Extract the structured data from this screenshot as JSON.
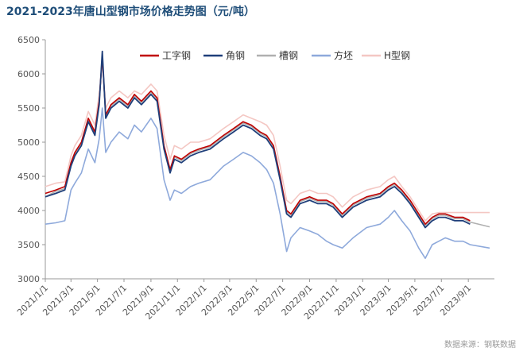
{
  "title": "2021-2023年唐山型钢市场价格走势图（元/吨）",
  "source": "数据来源：钢联数据",
  "chart_data": {
    "type": "line",
    "title": "2021-2023年唐山型钢市场价格走势图（元/吨）",
    "xlabel": "",
    "ylabel": "",
    "ylim": [
      3000,
      6500
    ],
    "yticks": [
      3000,
      3500,
      4000,
      4500,
      5000,
      5500,
      6000,
      6500
    ],
    "xlim": [
      "2021-01-01",
      "2023-10-31"
    ],
    "xticks": [
      "2021/1/1",
      "2021/3/1",
      "2021/5/1",
      "2021/7/1",
      "2021/9/1",
      "2021/11/1",
      "2022/1/1",
      "2022/3/1",
      "2022/5/1",
      "2022/7/1",
      "2022/9/1",
      "2022/11/1",
      "2023/1/1",
      "2023/3/1",
      "2023/5/1",
      "2023/7/1",
      "2023/9/1"
    ],
    "grid": false,
    "legend_position": "top-right",
    "series": [
      {
        "name": "工字钢",
        "color": "#c00000",
        "x": [
          "2021-01-01",
          "2021-01-25",
          "2021-02-15",
          "2021-03-01",
          "2021-03-10",
          "2021-03-25",
          "2021-04-10",
          "2021-04-25",
          "2021-05-05",
          "2021-05-12",
          "2021-05-20",
          "2021-06-01",
          "2021-06-20",
          "2021-07-10",
          "2021-07-25",
          "2021-08-10",
          "2021-09-01",
          "2021-09-15",
          "2021-10-01",
          "2021-10-15",
          "2021-10-25",
          "2021-11-10",
          "2021-12-01",
          "2021-12-20",
          "2022-01-15",
          "2022-02-15",
          "2022-03-10",
          "2022-04-01",
          "2022-04-20",
          "2022-05-10",
          "2022-05-25",
          "2022-06-10",
          "2022-06-25",
          "2022-07-10",
          "2022-07-20",
          "2022-08-10",
          "2022-09-01",
          "2022-09-20",
          "2022-10-10",
          "2022-10-25",
          "2022-11-15",
          "2022-12-10",
          "2023-01-10",
          "2023-02-10",
          "2023-03-01",
          "2023-03-15",
          "2023-04-01",
          "2023-04-20",
          "2023-05-10",
          "2023-05-25",
          "2023-06-10",
          "2023-06-25",
          "2023-07-10",
          "2023-08-01",
          "2023-08-20",
          "2023-09-05"
        ],
        "values": [
          4250,
          4300,
          4350,
          4700,
          4850,
          5000,
          5350,
          5150,
          5600,
          6250,
          5400,
          5550,
          5650,
          5550,
          5700,
          5600,
          5750,
          5650,
          4950,
          4600,
          4800,
          4750,
          4850,
          4900,
          4950,
          5100,
          5200,
          5300,
          5250,
          5150,
          5100,
          4950,
          4500,
          4000,
          3950,
          4150,
          4200,
          4150,
          4150,
          4100,
          3950,
          4100,
          4200,
          4250,
          4350,
          4400,
          4300,
          4150,
          3950,
          3800,
          3900,
          3950,
          3950,
          3900,
          3900,
          3850
        ]
      },
      {
        "name": "角钢",
        "color": "#1f3f7a",
        "x": [
          "2021-01-01",
          "2021-01-25",
          "2021-02-15",
          "2021-03-01",
          "2021-03-10",
          "2021-03-25",
          "2021-04-10",
          "2021-04-25",
          "2021-05-05",
          "2021-05-12",
          "2021-05-20",
          "2021-06-01",
          "2021-06-20",
          "2021-07-10",
          "2021-07-25",
          "2021-08-10",
          "2021-09-01",
          "2021-09-15",
          "2021-10-01",
          "2021-10-15",
          "2021-10-25",
          "2021-11-10",
          "2021-12-01",
          "2021-12-20",
          "2022-01-15",
          "2022-02-15",
          "2022-03-10",
          "2022-04-01",
          "2022-04-20",
          "2022-05-10",
          "2022-05-25",
          "2022-06-10",
          "2022-06-25",
          "2022-07-10",
          "2022-07-20",
          "2022-08-10",
          "2022-09-01",
          "2022-09-20",
          "2022-10-10",
          "2022-10-25",
          "2022-11-15",
          "2022-12-10",
          "2023-01-10",
          "2023-02-10",
          "2023-03-01",
          "2023-03-15",
          "2023-04-01",
          "2023-04-20",
          "2023-05-10",
          "2023-05-25",
          "2023-06-10",
          "2023-06-25",
          "2023-07-10",
          "2023-08-01",
          "2023-08-20",
          "2023-09-05"
        ],
        "values": [
          4200,
          4250,
          4300,
          4650,
          4800,
          4950,
          5300,
          5100,
          5550,
          6330,
          5350,
          5500,
          5600,
          5500,
          5650,
          5550,
          5700,
          5600,
          4900,
          4550,
          4750,
          4700,
          4800,
          4850,
          4900,
          5050,
          5150,
          5250,
          5200,
          5100,
          5050,
          4900,
          4450,
          3950,
          3900,
          4100,
          4150,
          4100,
          4100,
          4050,
          3900,
          4050,
          4150,
          4200,
          4300,
          4350,
          4250,
          4100,
          3900,
          3750,
          3850,
          3900,
          3900,
          3850,
          3850,
          3800
        ]
      },
      {
        "name": "槽钢",
        "color": "#b0b0b0",
        "x": [
          "2021-01-01",
          "2021-01-25",
          "2021-02-15",
          "2021-03-01",
          "2021-03-10",
          "2021-03-25",
          "2021-04-10",
          "2021-04-25",
          "2021-05-05",
          "2021-05-12",
          "2021-05-20",
          "2021-06-01",
          "2021-06-20",
          "2021-07-10",
          "2021-07-25",
          "2021-08-10",
          "2021-09-01",
          "2021-09-15",
          "2021-10-01",
          "2021-10-15",
          "2021-10-25",
          "2021-11-10",
          "2021-12-01",
          "2021-12-20",
          "2022-01-15",
          "2022-02-15",
          "2022-03-10",
          "2022-04-01",
          "2022-04-20",
          "2022-05-10",
          "2022-05-25",
          "2022-06-10",
          "2022-06-25",
          "2022-07-10",
          "2022-07-20",
          "2022-08-10",
          "2022-09-01",
          "2022-09-20",
          "2022-10-10",
          "2022-10-25",
          "2022-11-15",
          "2022-12-10",
          "2023-01-10",
          "2023-02-10",
          "2023-03-01",
          "2023-03-15",
          "2023-04-01",
          "2023-04-20",
          "2023-05-10",
          "2023-05-25",
          "2023-06-10",
          "2023-06-25",
          "2023-07-10",
          "2023-08-01",
          "2023-08-20",
          "2023-09-05",
          "2023-10-20"
        ],
        "values": [
          4200,
          4280,
          4320,
          4680,
          4830,
          4980,
          5330,
          5130,
          5580,
          6280,
          5380,
          5530,
          5630,
          5530,
          5680,
          5580,
          5730,
          5630,
          4930,
          4580,
          4780,
          4730,
          4830,
          4880,
          4930,
          5080,
          5180,
          5280,
          5230,
          5130,
          5080,
          4930,
          4480,
          3980,
          3930,
          4130,
          4180,
          4130,
          4130,
          4080,
          3930,
          4080,
          4180,
          4230,
          4330,
          4380,
          4280,
          4130,
          3930,
          3780,
          3880,
          3930,
          3930,
          3880,
          3880,
          3830,
          3760
        ]
      },
      {
        "name": "方坯",
        "color": "#8ea9db",
        "x": [
          "2021-01-01",
          "2021-01-25",
          "2021-02-15",
          "2021-03-01",
          "2021-03-10",
          "2021-03-25",
          "2021-04-10",
          "2021-04-25",
          "2021-05-05",
          "2021-05-12",
          "2021-05-20",
          "2021-06-01",
          "2021-06-20",
          "2021-07-10",
          "2021-07-25",
          "2021-08-10",
          "2021-09-01",
          "2021-09-15",
          "2021-10-01",
          "2021-10-15",
          "2021-10-25",
          "2021-11-10",
          "2021-12-01",
          "2021-12-20",
          "2022-01-15",
          "2022-02-15",
          "2022-03-10",
          "2022-04-01",
          "2022-04-20",
          "2022-05-10",
          "2022-05-25",
          "2022-06-10",
          "2022-06-25",
          "2022-07-10",
          "2022-07-20",
          "2022-08-10",
          "2022-09-01",
          "2022-09-20",
          "2022-10-10",
          "2022-10-25",
          "2022-11-15",
          "2022-12-10",
          "2023-01-10",
          "2023-02-10",
          "2023-03-01",
          "2023-03-15",
          "2023-04-01",
          "2023-04-20",
          "2023-05-10",
          "2023-05-25",
          "2023-06-10",
          "2023-06-25",
          "2023-07-10",
          "2023-08-01",
          "2023-08-20",
          "2023-09-05",
          "2023-10-20"
        ],
        "values": [
          3800,
          3820,
          3850,
          4300,
          4400,
          4550,
          4900,
          4700,
          5050,
          5500,
          4850,
          5000,
          5150,
          5050,
          5250,
          5150,
          5350,
          5200,
          4450,
          4150,
          4300,
          4250,
          4350,
          4400,
          4450,
          4650,
          4750,
          4850,
          4800,
          4700,
          4600,
          4400,
          3950,
          3400,
          3600,
          3750,
          3700,
          3650,
          3550,
          3500,
          3450,
          3600,
          3750,
          3800,
          3900,
          4000,
          3850,
          3700,
          3450,
          3300,
          3500,
          3550,
          3600,
          3550,
          3550,
          3500,
          3450
        ]
      },
      {
        "name": "H型钢",
        "color": "#f4c7c3",
        "x": [
          "2021-01-01",
          "2021-01-25",
          "2021-02-15",
          "2021-03-01",
          "2021-03-10",
          "2021-03-25",
          "2021-04-10",
          "2021-04-25",
          "2021-05-05",
          "2021-05-12",
          "2021-05-20",
          "2021-06-01",
          "2021-06-20",
          "2021-07-10",
          "2021-07-25",
          "2021-08-10",
          "2021-09-01",
          "2021-09-15",
          "2021-10-01",
          "2021-10-15",
          "2021-10-25",
          "2021-11-10",
          "2021-12-01",
          "2021-12-20",
          "2022-01-15",
          "2022-02-15",
          "2022-03-10",
          "2022-04-01",
          "2022-04-20",
          "2022-05-10",
          "2022-05-25",
          "2022-06-10",
          "2022-06-25",
          "2022-07-10",
          "2022-07-20",
          "2022-08-10",
          "2022-09-01",
          "2022-09-20",
          "2022-10-10",
          "2022-10-25",
          "2022-11-15",
          "2022-12-10",
          "2023-01-10",
          "2023-02-10",
          "2023-03-01",
          "2023-03-15",
          "2023-04-01",
          "2023-04-20",
          "2023-05-10",
          "2023-05-25",
          "2023-06-10",
          "2023-06-25",
          "2023-07-10",
          "2023-08-01",
          "2023-08-20",
          "2023-09-05",
          "2023-10-20"
        ],
        "values": [
          4350,
          4400,
          4420,
          4800,
          4950,
          5100,
          5450,
          5250,
          5700,
          6200,
          5500,
          5650,
          5750,
          5650,
          5750,
          5700,
          5850,
          5750,
          5100,
          4750,
          4950,
          4900,
          5000,
          5000,
          5050,
          5200,
          5300,
          5400,
          5350,
          5300,
          5250,
          5100,
          4650,
          4150,
          4100,
          4250,
          4300,
          4250,
          4250,
          4200,
          4050,
          4200,
          4300,
          4350,
          4450,
          4500,
          4350,
          4200,
          4000,
          3850,
          3950,
          3970,
          3970,
          3970,
          3970,
          3970,
          3970
        ]
      }
    ]
  }
}
